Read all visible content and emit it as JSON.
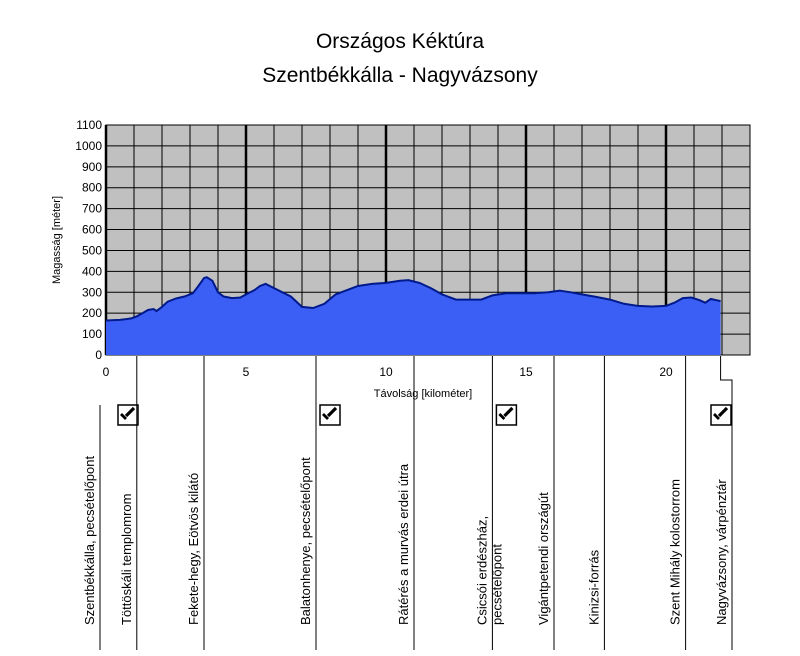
{
  "chart_data": {
    "type": "area",
    "title": "Országos Kéktúra",
    "subtitle": "Szentbékkálla - Nagyvázsony",
    "xlabel": "Távolság [kilométer]",
    "ylabel": "Magasság [méter]",
    "xlim": [
      0,
      23
    ],
    "ylim": [
      0,
      1100
    ],
    "x_ticks": [
      0,
      5,
      10,
      15,
      20
    ],
    "y_ticks": [
      0,
      100,
      200,
      300,
      400,
      500,
      600,
      700,
      800,
      900,
      1000,
      1100
    ],
    "grid": true,
    "colors": {
      "fill": "#3b5ef5",
      "line": "#001a8c",
      "plot_bg": "#c0c0c0",
      "grid": "#000000"
    },
    "series": [
      {
        "x": [
          0,
          0.5,
          0.9,
          1.1,
          1.3,
          1.5,
          1.7,
          1.8,
          2.0,
          2.2,
          2.5,
          2.8,
          3.1,
          3.3,
          3.5,
          3.6,
          3.8,
          4.0,
          4.2,
          4.5,
          4.8,
          5.0,
          5.3,
          5.5,
          5.7,
          6.0,
          6.3,
          6.6,
          7.0,
          7.4,
          7.8,
          8.2,
          8.6,
          9.0,
          9.5,
          10.0,
          10.5,
          10.8,
          11.2,
          11.6,
          12.0,
          12.5,
          13.0,
          13.4,
          13.8,
          14.3,
          14.8,
          15.3,
          15.8,
          16.2,
          16.6,
          17.0,
          17.5,
          18.0,
          18.5,
          19.0,
          19.5,
          20.0,
          20.3,
          20.6,
          20.9,
          21.2,
          21.4,
          21.6,
          21.8,
          21.95
        ],
        "y": [
          165,
          168,
          175,
          185,
          200,
          215,
          220,
          210,
          230,
          255,
          270,
          280,
          295,
          330,
          368,
          372,
          355,
          300,
          280,
          272,
          275,
          290,
          310,
          330,
          340,
          320,
          300,
          280,
          230,
          225,
          245,
          290,
          310,
          330,
          340,
          345,
          355,
          358,
          345,
          320,
          290,
          265,
          265,
          265,
          285,
          295,
          295,
          295,
          300,
          308,
          300,
          290,
          278,
          265,
          245,
          235,
          232,
          235,
          250,
          272,
          275,
          262,
          250,
          268,
          262,
          258
        ]
      }
    ],
    "icon": "stamp-icon",
    "waypoints": [
      {
        "km": 0,
        "label": "Szentbékkálla, pecsételőpont",
        "stamp": true
      },
      {
        "km": 1.1,
        "label": "Töttöskáli templomrom",
        "stamp": false
      },
      {
        "km": 3.5,
        "label": "Fekete-hegy, Eötvös kilátó",
        "stamp": false
      },
      {
        "km": 7.5,
        "label": "Balatonhenye, pecsételőpont",
        "stamp": true
      },
      {
        "km": 11.0,
        "label": "Rátérés a murvás erdei útra",
        "stamp": false
      },
      {
        "km": 13.8,
        "label": "Csicsói erdészház,",
        "label2": "pecsételőpont",
        "stamp": true
      },
      {
        "km": 16.0,
        "label": "Vigántpetendi országút",
        "stamp": false
      },
      {
        "km": 17.8,
        "label": "Kinizsi-forrás",
        "stamp": false
      },
      {
        "km": 20.7,
        "label": "Szent Mihály kolostorrom",
        "stamp": false
      },
      {
        "km": 21.95,
        "label": "Nagyvázsony, várpénztár",
        "stamp": true
      }
    ]
  }
}
